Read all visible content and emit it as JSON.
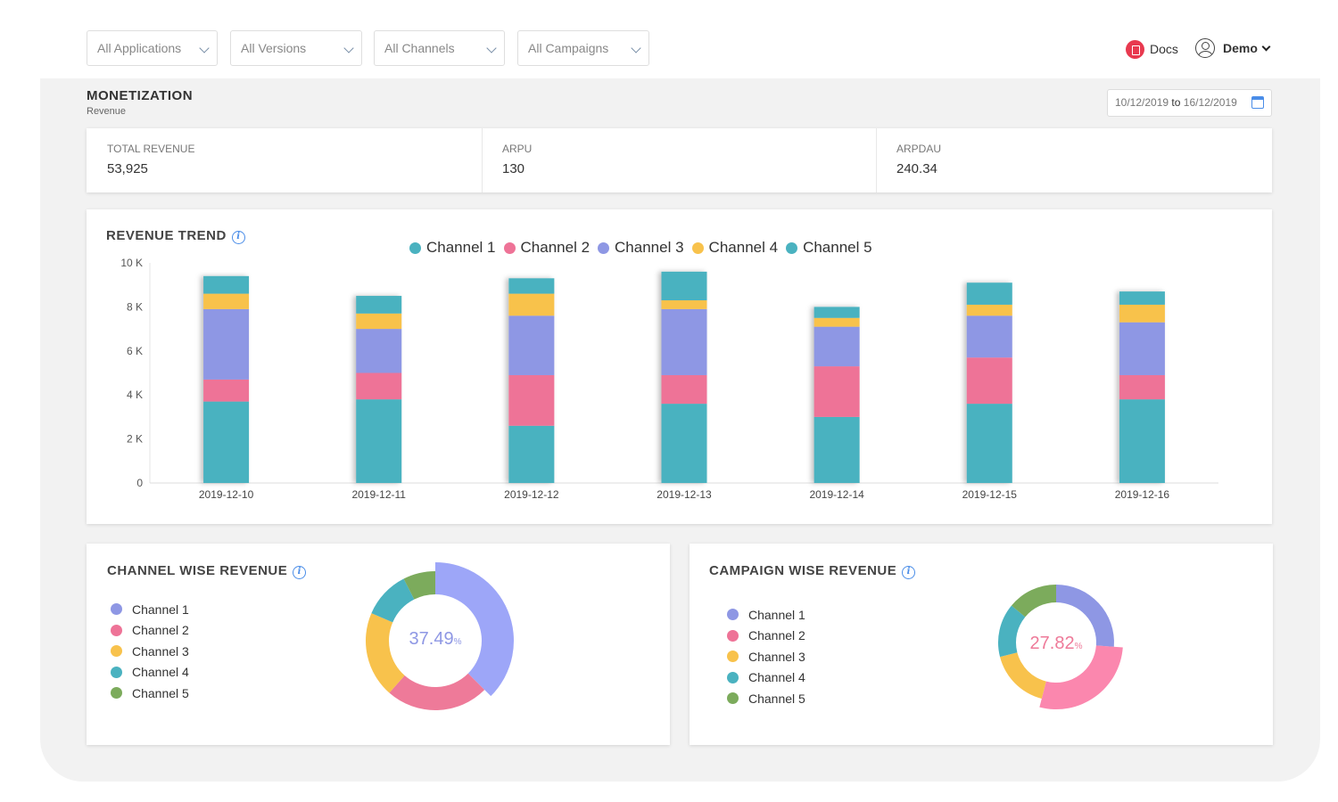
{
  "filters": [
    {
      "label": "All Applications"
    },
    {
      "label": "All Versions"
    },
    {
      "label": "All Channels"
    },
    {
      "label": "All Campaigns"
    }
  ],
  "header": {
    "docs_label": "Docs",
    "user_label": "Demo"
  },
  "section": {
    "title": "MONETIZATION",
    "subtitle": "Revenue"
  },
  "date_range": {
    "from": "10/12/2019",
    "to_word": "to",
    "to": "16/12/2019"
  },
  "kpis": [
    {
      "label": "TOTAL REVENUE",
      "value": "53,925"
    },
    {
      "label": "ARPU",
      "value": "130"
    },
    {
      "label": "ARPDAU",
      "value": "240.34"
    }
  ],
  "revenue_trend": {
    "title": "REVENUE TREND",
    "legend": [
      "Channel 1",
      "Channel 2",
      "Channel 3",
      "Channel 4",
      "Channel 5"
    ]
  },
  "colors": {
    "teal": "#4ab2c0",
    "pink": "#ee7397",
    "purple": "#8e97e4",
    "yellow": "#f8c24c",
    "green": "#7cab5c",
    "periwinkle": "#9da6f8",
    "rose": "#ee7a99",
    "accent": "#4a8de8"
  },
  "chart_data": [
    {
      "type": "bar",
      "stacked": true,
      "categories": [
        "2019-12-10",
        "2019-12-11",
        "2019-12-12",
        "2019-12-13",
        "2019-12-14",
        "2019-12-15",
        "2019-12-16"
      ],
      "series": [
        {
          "name": "Channel 1",
          "color": "#4ab2c0",
          "values": [
            3700,
            3800,
            2600,
            3600,
            3000,
            3600,
            3800
          ]
        },
        {
          "name": "Channel 2",
          "color": "#ee7397",
          "values": [
            1000,
            1200,
            2300,
            1300,
            2300,
            2100,
            1100
          ]
        },
        {
          "name": "Channel 3",
          "color": "#8e97e4",
          "values": [
            3200,
            2000,
            2700,
            3000,
            1800,
            1900,
            2400
          ]
        },
        {
          "name": "Channel 4",
          "color": "#f8c24c",
          "values": [
            700,
            700,
            1000,
            400,
            400,
            500,
            800
          ]
        },
        {
          "name": "Channel 5",
          "color": "#4ab2c0",
          "values": [
            800,
            800,
            700,
            1300,
            500,
            1000,
            600
          ]
        }
      ],
      "yticks": [
        "0",
        "2 K",
        "4 K",
        "6 K",
        "8 K",
        "10 K"
      ],
      "ylim": [
        0,
        10000
      ],
      "xlabel": "",
      "ylabel": "",
      "grid": false,
      "legend_position": "top"
    },
    {
      "type": "pie",
      "title": "CHANNEL WISE REVENUE",
      "donut": true,
      "center_value": "37.49",
      "center_unit": "%",
      "center_color": "#8e97e4",
      "labels": [
        "Channel 1",
        "Channel 2",
        "Channel 3",
        "Channel 4",
        "Channel 5"
      ],
      "colors": [
        "#9da6f8",
        "#ee7a99",
        "#f8c24c",
        "#4ab2c0",
        "#7cab5c"
      ],
      "values": [
        37.49,
        24.0,
        20.0,
        11.0,
        7.51
      ],
      "legend_position": "left"
    },
    {
      "type": "pie",
      "title": "CAMPAIGN WISE REVENUE",
      "donut": true,
      "center_value": "27.82",
      "center_unit": "%",
      "center_color": "#ee7a99",
      "labels": [
        "Channel 1",
        "Channel 2",
        "Channel 3",
        "Channel 4",
        "Channel 5"
      ],
      "colors": [
        "#8e97e4",
        "#fb87ae",
        "#f8c24c",
        "#4ab2c0",
        "#7cab5c"
      ],
      "values": [
        26.18,
        27.82,
        17.0,
        15.0,
        14.0
      ],
      "legend_position": "left"
    }
  ]
}
